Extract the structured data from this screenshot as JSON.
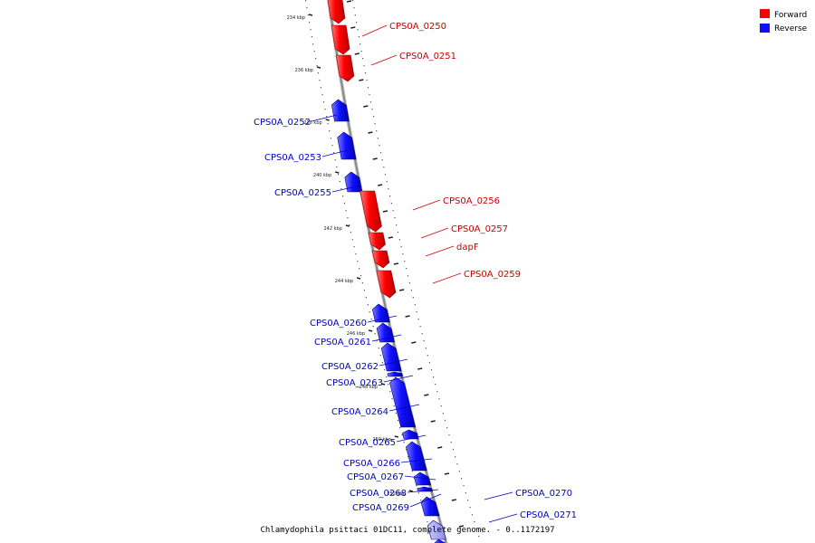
{
  "title": "Chlamydophila psittaci 01DC11, complete genome. - 0..1172197",
  "colors": {
    "forward": "#ff0000",
    "reverse": "#1010ff",
    "forward_label": "#cc0000",
    "reverse_label": "#0000cc",
    "backbone": "#888888"
  },
  "legend": [
    {
      "label": "Forward",
      "color": "#ff0000"
    },
    {
      "label": "Reverse",
      "color": "#1010ff"
    }
  ],
  "scale": {
    "unit": "kbp",
    "labels": [
      "234 kbp",
      "236 kbp",
      "238 kbp",
      "240 kbp",
      "242 kbp",
      "244 kbp",
      "246 kbp",
      "248 kbp",
      "250 kbp",
      "252 kbp"
    ]
  },
  "genes": [
    {
      "name": "CPS0A_0250",
      "strand": "forward"
    },
    {
      "name": "CPS0A_0251",
      "strand": "forward"
    },
    {
      "name": "CPS0A_0252",
      "strand": "reverse"
    },
    {
      "name": "CPS0A_0253",
      "strand": "reverse"
    },
    {
      "name": "CPS0A_0255",
      "strand": "reverse"
    },
    {
      "name": "CPS0A_0256",
      "strand": "forward"
    },
    {
      "name": "CPS0A_0257",
      "strand": "forward"
    },
    {
      "name": "dapF",
      "strand": "forward"
    },
    {
      "name": "CPS0A_0259",
      "strand": "forward"
    },
    {
      "name": "CPS0A_0260",
      "strand": "reverse"
    },
    {
      "name": "CPS0A_0261",
      "strand": "reverse"
    },
    {
      "name": "CPS0A_0262",
      "strand": "reverse"
    },
    {
      "name": "CPS0A_0263",
      "strand": "reverse"
    },
    {
      "name": "CPS0A_0264",
      "strand": "reverse"
    },
    {
      "name": "CPS0A_0265",
      "strand": "reverse"
    },
    {
      "name": "CPS0A_0266",
      "strand": "reverse"
    },
    {
      "name": "CPS0A_0267",
      "strand": "reverse"
    },
    {
      "name": "CPS0A_0268",
      "strand": "reverse"
    },
    {
      "name": "CPS0A_0269",
      "strand": "reverse"
    },
    {
      "name": "CPS0A_0270",
      "strand": "reverse"
    },
    {
      "name": "CPS0A_0271",
      "strand": "reverse"
    }
  ]
}
